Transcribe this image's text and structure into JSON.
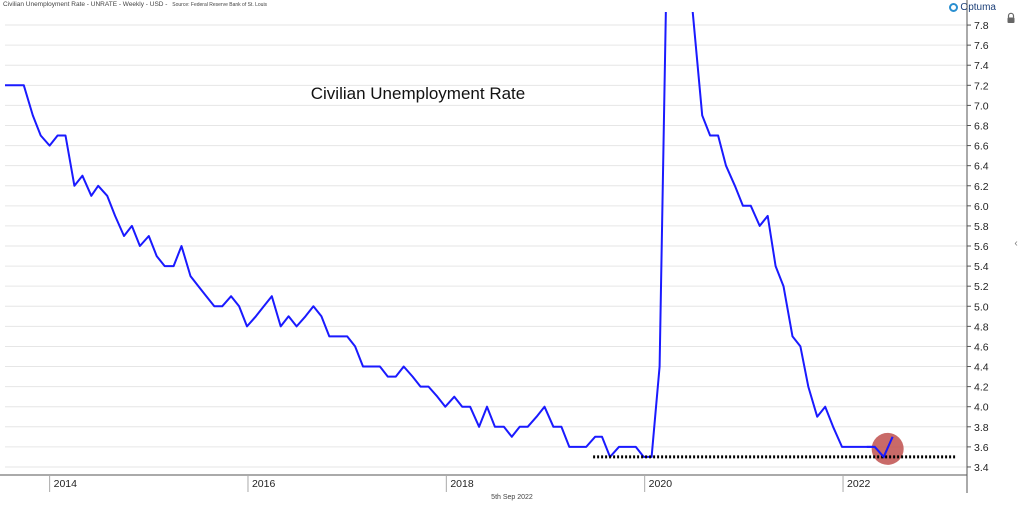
{
  "header": {
    "series_label": "Civilian Unemployment Rate - UNRATE - Weekly - USD -",
    "source_label": "Source: Federal Reserve Bank of St. Louis"
  },
  "logo": {
    "text": "Optuma"
  },
  "footer": {
    "date_label": "5th Sep 2022"
  },
  "icons": {
    "lock": "lock-icon",
    "collapse": "chevron-left-icon"
  },
  "colors": {
    "line": "#1a1aff",
    "highlight": "#c0504d",
    "support": "#000000",
    "grid": "#e6e6e6"
  },
  "chart_data": {
    "type": "line",
    "title": "Civilian Unemployment Rate",
    "xlabel": "",
    "ylabel": "",
    "x_ticks": [
      {
        "label": "2014",
        "x": 2014.0
      },
      {
        "label": "2016",
        "x": 2016.0
      },
      {
        "label": "2018",
        "x": 2018.0
      },
      {
        "label": "2020",
        "x": 2020.0
      },
      {
        "label": "2022",
        "x": 2022.0
      }
    ],
    "y_ticks": [
      "3.4",
      "3.6",
      "3.8",
      "4.0",
      "4.2",
      "4.4",
      "4.6",
      "4.8",
      "5.0",
      "5.2",
      "5.4",
      "5.6",
      "5.8",
      "6.0",
      "6.2",
      "6.4",
      "6.6",
      "6.8",
      "7.0",
      "7.2",
      "7.4",
      "7.6",
      "7.8"
    ],
    "xlim": [
      2013.55,
      2023.25
    ],
    "ylim": [
      3.32,
      7.93
    ],
    "grid": "horizontal",
    "series": [
      {
        "color": "#1a1aff",
        "points": [
          [
            2013.55,
            7.2
          ],
          [
            2013.74,
            7.2
          ],
          [
            2013.83,
            6.9
          ],
          [
            2013.91,
            6.7
          ],
          [
            2014.0,
            6.6
          ],
          [
            2014.08,
            6.7
          ],
          [
            2014.16,
            6.7
          ],
          [
            2014.25,
            6.2
          ],
          [
            2014.33,
            6.3
          ],
          [
            2014.42,
            6.1
          ],
          [
            2014.49,
            6.2
          ],
          [
            2014.58,
            6.1
          ],
          [
            2014.66,
            5.9
          ],
          [
            2014.75,
            5.7
          ],
          [
            2014.83,
            5.8
          ],
          [
            2014.91,
            5.6
          ],
          [
            2015.0,
            5.7
          ],
          [
            2015.08,
            5.5
          ],
          [
            2015.16,
            5.4
          ],
          [
            2015.25,
            5.4
          ],
          [
            2015.33,
            5.6
          ],
          [
            2015.42,
            5.3
          ],
          [
            2015.5,
            5.2
          ],
          [
            2015.58,
            5.1
          ],
          [
            2015.66,
            5.0
          ],
          [
            2015.74,
            5.0
          ],
          [
            2015.83,
            5.1
          ],
          [
            2015.91,
            5.0
          ],
          [
            2015.99,
            4.8
          ],
          [
            2016.08,
            4.9
          ],
          [
            2016.16,
            5.0
          ],
          [
            2016.24,
            5.1
          ],
          [
            2016.33,
            4.8
          ],
          [
            2016.41,
            4.9
          ],
          [
            2016.49,
            4.8
          ],
          [
            2016.58,
            4.9
          ],
          [
            2016.66,
            5.0
          ],
          [
            2016.74,
            4.9
          ],
          [
            2016.82,
            4.7
          ],
          [
            2016.91,
            4.7
          ],
          [
            2017.0,
            4.7
          ],
          [
            2017.08,
            4.6
          ],
          [
            2017.16,
            4.4
          ],
          [
            2017.24,
            4.4
          ],
          [
            2017.33,
            4.4
          ],
          [
            2017.41,
            4.3
          ],
          [
            2017.49,
            4.3
          ],
          [
            2017.57,
            4.4
          ],
          [
            2017.66,
            4.3
          ],
          [
            2017.74,
            4.2
          ],
          [
            2017.82,
            4.2
          ],
          [
            2017.91,
            4.1
          ],
          [
            2017.99,
            4.0
          ],
          [
            2018.08,
            4.1
          ],
          [
            2018.16,
            4.0
          ],
          [
            2018.24,
            4.0
          ],
          [
            2018.33,
            3.8
          ],
          [
            2018.41,
            4.0
          ],
          [
            2018.49,
            3.8
          ],
          [
            2018.58,
            3.8
          ],
          [
            2018.66,
            3.7
          ],
          [
            2018.74,
            3.8
          ],
          [
            2018.82,
            3.8
          ],
          [
            2018.91,
            3.9
          ],
          [
            2018.99,
            4.0
          ],
          [
            2019.08,
            3.8
          ],
          [
            2019.16,
            3.8
          ],
          [
            2019.24,
            3.6
          ],
          [
            2019.33,
            3.6
          ],
          [
            2019.41,
            3.6
          ],
          [
            2019.5,
            3.7
          ],
          [
            2019.57,
            3.7
          ],
          [
            2019.65,
            3.5
          ],
          [
            2019.74,
            3.6
          ],
          [
            2019.82,
            3.6
          ],
          [
            2019.91,
            3.6
          ],
          [
            2019.99,
            3.5
          ],
          [
            2020.07,
            3.5
          ],
          [
            2020.15,
            4.4
          ],
          [
            2020.22,
            8.3
          ],
          [
            2020.45,
            8.3
          ],
          [
            2020.58,
            6.9
          ],
          [
            2020.66,
            6.7
          ],
          [
            2020.74,
            6.7
          ],
          [
            2020.82,
            6.4
          ],
          [
            2020.91,
            6.2
          ],
          [
            2020.99,
            6.0
          ],
          [
            2021.07,
            6.0
          ],
          [
            2021.16,
            5.8
          ],
          [
            2021.24,
            5.9
          ],
          [
            2021.32,
            5.4
          ],
          [
            2021.4,
            5.2
          ],
          [
            2021.49,
            4.7
          ],
          [
            2021.57,
            4.6
          ],
          [
            2021.65,
            4.2
          ],
          [
            2021.74,
            3.9
          ],
          [
            2021.82,
            4.0
          ],
          [
            2021.9,
            3.8
          ],
          [
            2021.99,
            3.6
          ],
          [
            2022.07,
            3.6
          ],
          [
            2022.15,
            3.6
          ],
          [
            2022.24,
            3.6
          ],
          [
            2022.32,
            3.6
          ],
          [
            2022.41,
            3.5
          ],
          [
            2022.5,
            3.7
          ]
        ]
      }
    ],
    "support_line": {
      "y": 3.5,
      "x_start": 2019.48,
      "x_end": 2023.13,
      "style": "dotted"
    },
    "highlight_marker": {
      "x": 2022.45,
      "y": 3.58,
      "color": "#c0504d"
    }
  }
}
